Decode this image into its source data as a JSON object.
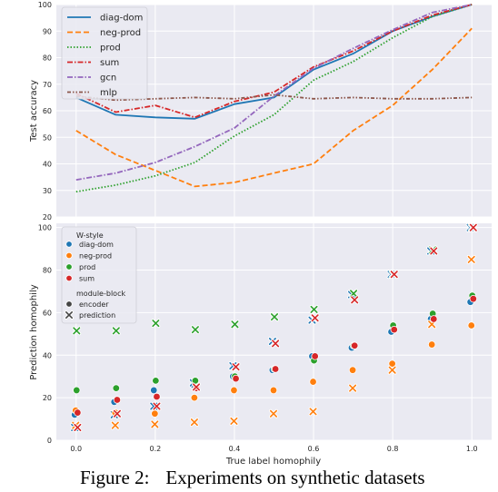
{
  "caption": {
    "label": "Figure 2:",
    "text": "Experiments on synthetic datasets"
  },
  "chart_data": [
    {
      "type": "line",
      "title": "",
      "xlabel": "",
      "ylabel": "Test accuracy",
      "xlim": [
        -0.05,
        1.05
      ],
      "ylim": [
        20,
        100
      ],
      "yticks": [
        20,
        30,
        40,
        50,
        60,
        70,
        80,
        90,
        100
      ],
      "grid": true,
      "legend": "top-left",
      "x": [
        0.0,
        0.1,
        0.2,
        0.3,
        0.4,
        0.5,
        0.6,
        0.7,
        0.8,
        0.9,
        1.0
      ],
      "series": [
        {
          "name": "diag-dom",
          "color": "#1f77b4",
          "style": "solid",
          "values": [
            65,
            58.5,
            57.5,
            57,
            62.5,
            65,
            75.5,
            81.5,
            90,
            95.5,
            100
          ]
        },
        {
          "name": "neg-prod",
          "color": "#ff7f0e",
          "style": "dashed",
          "values": [
            52.5,
            43.5,
            37.5,
            31.5,
            33,
            36.5,
            40,
            52.5,
            62,
            75.5,
            91
          ]
        },
        {
          "name": "prod",
          "color": "#2ca02c",
          "style": "dotted",
          "values": [
            29.5,
            32,
            35.5,
            40.5,
            50.5,
            58.5,
            71.5,
            78.5,
            87.5,
            95.5,
            100
          ]
        },
        {
          "name": "sum",
          "color": "#d62728",
          "style": "dashdot",
          "values": [
            66.5,
            59.5,
            62,
            57.5,
            63.5,
            67,
            76.5,
            82.5,
            90,
            96,
            100
          ]
        },
        {
          "name": "gcn",
          "color": "#9467bd",
          "style": "dashdot",
          "values": [
            34,
            36.5,
            40.5,
            46.5,
            53.5,
            65.5,
            76,
            83.5,
            90.5,
            97,
            100
          ]
        },
        {
          "name": "mlp",
          "color": "#8c564b",
          "style": "dashdotdot",
          "values": [
            65.5,
            64,
            64.5,
            65,
            64.5,
            66,
            64.5,
            65,
            64.5,
            64.5,
            65
          ]
        }
      ]
    },
    {
      "type": "scatter",
      "title": "",
      "xlabel": "True label homophily",
      "ylabel": "Prediction homophily",
      "xlim": [
        -0.05,
        1.05
      ],
      "ylim": [
        0,
        102
      ],
      "xticks": [
        "0.0",
        "0.2",
        "0.4",
        "0.6",
        "0.8",
        "1.0"
      ],
      "yticks": [
        0,
        20,
        40,
        60,
        80,
        100
      ],
      "grid": true,
      "legend": "top-left",
      "legend_title": "W-style",
      "legend_title2": "module-block",
      "x": [
        0.0,
        0.1,
        0.2,
        0.3,
        0.4,
        0.5,
        0.6,
        0.7,
        0.8,
        0.9,
        1.0
      ],
      "series": [
        {
          "name": "diag-dom",
          "color": "#1f77b4",
          "encoder": [
            12,
            18,
            23.5,
            26,
            30,
            33,
            39.5,
            43.5,
            51,
            57,
            65
          ],
          "prediction": [
            6,
            12,
            16,
            27,
            35,
            46.5,
            56.5,
            68.5,
            78,
            89,
            100
          ]
        },
        {
          "name": "neg-prod",
          "color": "#ff7f0e",
          "encoder": [
            14,
            13,
            12.5,
            20,
            23.5,
            23.5,
            27.5,
            33,
            36,
            45,
            54
          ],
          "prediction": [
            7,
            7,
            7.5,
            8.5,
            9,
            12.5,
            13.5,
            24.5,
            33,
            54.5,
            85
          ]
        },
        {
          "name": "prod",
          "color": "#2ca02c",
          "encoder": [
            23.5,
            24.5,
            28,
            28,
            30,
            33.5,
            37.5,
            44.5,
            54,
            59.5,
            68
          ],
          "prediction": [
            51.5,
            51.5,
            55,
            52,
            54.5,
            58,
            61.5,
            69,
            78,
            89.5,
            100
          ]
        },
        {
          "name": "sum",
          "color": "#d62728",
          "encoder": [
            13,
            19,
            20.5,
            24.5,
            29,
            33.5,
            39.5,
            44.5,
            52,
            57,
            66.5
          ],
          "prediction": [
            6,
            12.5,
            16,
            25,
            34.5,
            45.5,
            57.5,
            66,
            78,
            89,
            100
          ]
        }
      ]
    }
  ]
}
